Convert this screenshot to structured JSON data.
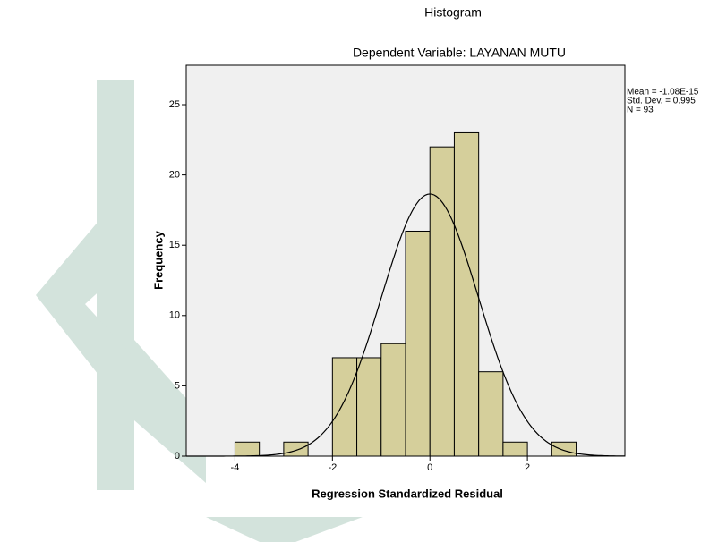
{
  "chart_data": {
    "type": "histogram",
    "title": "Histogram",
    "subtitle": "Dependent Variable: LAYANAN MUTU",
    "x_label": "Regression Standardized Residual",
    "y_label": "Frequency",
    "bins": [
      -4,
      -3.5,
      -3,
      -2.5,
      -2,
      -1.5,
      -1,
      -0.5,
      0,
      0.5,
      1,
      1.5,
      2,
      2.5,
      3
    ],
    "values": [
      1,
      0,
      1,
      0,
      7,
      7,
      8,
      16,
      22,
      23,
      6,
      1,
      0,
      1
    ],
    "color": "#d5cf9b",
    "xlim": [
      -5,
      4
    ],
    "xticks": [
      -4,
      -2,
      0,
      2
    ],
    "ylim": [
      0,
      27.8
    ],
    "yticks": [
      0,
      5,
      10,
      15,
      20,
      25
    ],
    "stats": [
      {
        "value": -1.08e-15,
        "label": "Mean = -1.08E-15"
      },
      {
        "value": 0.995,
        "label": "Std. Dev. = 0.995"
      },
      {
        "value": 93,
        "label": "N = 93"
      }
    ],
    "normal_curve": true
  }
}
